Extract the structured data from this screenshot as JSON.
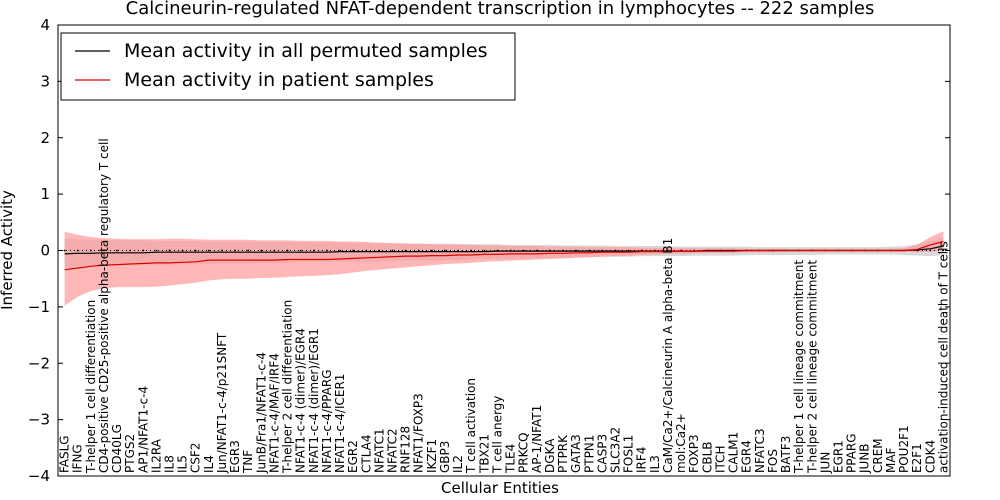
{
  "chart_data": {
    "type": "line",
    "title": "Calcineurin-regulated NFAT-dependent transcription in lymphocytes -- 222 samples",
    "xlabel": "Cellular Entities",
    "ylabel": "Inferred Activity",
    "ylim": [
      -4,
      4
    ],
    "yticks": [
      -4,
      -3,
      -2,
      -1,
      0,
      1,
      2,
      3,
      4
    ],
    "grid": false,
    "legend_position": "top-left",
    "categories": [
      "FASLG",
      "IFNG",
      "T-helper 1 cell differentiation",
      "CD4-positive CD25-positive alpha-beta regulatory T cell",
      "CD40LG",
      "PTGS2",
      "AP1/NFAT1-c-4",
      "IL2RA",
      "IL8",
      "IL5",
      "CSF2",
      "IL4",
      "Jun/NFAT1-c-4/p21SNFT",
      "EGR3",
      "TNF",
      "JunB/Fra1/NFAT1-c-4",
      "NFAT1-c-4/MAF/IRF4",
      "T-helper 2 cell differentiation",
      "NFAT1-c-4 (dimer)/EGR4",
      "NFAT1-c-4 (dimer)/EGR1",
      "NFAT1-c-4/PPARG",
      "NFAT1-c-4/ICER1",
      "EGR2",
      "CTLA4",
      "NFATC1",
      "NFATC2",
      "RNF128",
      "NFAT1/FOXP3",
      "IKZF1",
      "GBP3",
      "IL2",
      "T cell activation",
      "TBX21",
      "T cell anergy",
      "TLE4",
      "PRKCQ",
      "AP-1/NFAT1",
      "DGKA",
      "PTPRK",
      "GATA3",
      "PTPN1",
      "CASP3",
      "SLC3A2",
      "FOSL1",
      "IRF4",
      "IL3",
      "CaM/Ca2+/Calcineurin A alpha-beta B1",
      "mol:Ca2+",
      "FOXP3",
      "CBLB",
      "ITCH",
      "CALM1",
      "EGR4",
      "NFATC3",
      "FOS",
      "BATF3",
      "T-helper 1 cell lineage commitment",
      "T-helper 2 cell lineage commitment",
      "JUN",
      "EGR1",
      "PPARG",
      "JUNB",
      "CREM",
      "MAF",
      "POU2F1",
      "E2F1",
      "CDK4",
      "activation-induced cell death of T cells"
    ],
    "series": [
      {
        "name": "Mean activity in all permuted samples",
        "color": "#000000",
        "values": [
          -0.06,
          -0.05,
          -0.05,
          -0.04,
          -0.04,
          -0.04,
          -0.04,
          -0.03,
          -0.03,
          -0.03,
          -0.03,
          -0.03,
          -0.03,
          -0.03,
          -0.03,
          -0.03,
          -0.03,
          -0.03,
          -0.03,
          -0.03,
          -0.03,
          -0.02,
          -0.02,
          -0.02,
          -0.02,
          -0.02,
          -0.02,
          -0.02,
          -0.02,
          -0.02,
          -0.02,
          -0.02,
          -0.02,
          -0.01,
          -0.01,
          -0.01,
          -0.01,
          -0.01,
          -0.01,
          -0.01,
          -0.01,
          -0.01,
          -0.01,
          -0.01,
          -0.01,
          -0.01,
          -0.01,
          -0.01,
          -0.01,
          0.0,
          0.0,
          0.0,
          0.0,
          0.0,
          0.0,
          0.0,
          0.0,
          0.0,
          0.0,
          0.0,
          0.0,
          0.0,
          0.0,
          0.0,
          0.0,
          0.01,
          0.03,
          0.08
        ],
        "band": {
          "lower": [
            -0.3,
            -0.28,
            -0.27,
            -0.26,
            -0.26,
            -0.25,
            -0.25,
            -0.25,
            -0.25,
            -0.24,
            -0.24,
            -0.24,
            -0.23,
            -0.23,
            -0.23,
            -0.22,
            -0.22,
            -0.22,
            -0.21,
            -0.21,
            -0.21,
            -0.2,
            -0.2,
            -0.2,
            -0.19,
            -0.19,
            -0.18,
            -0.18,
            -0.18,
            -0.17,
            -0.17,
            -0.16,
            -0.16,
            -0.15,
            -0.15,
            -0.14,
            -0.14,
            -0.13,
            -0.13,
            -0.12,
            -0.12,
            -0.11,
            -0.11,
            -0.11,
            -0.1,
            -0.1,
            -0.1,
            -0.1,
            -0.09,
            -0.09,
            -0.09,
            -0.09,
            -0.08,
            -0.08,
            -0.08,
            -0.08,
            -0.08,
            -0.08,
            -0.07,
            -0.07,
            -0.07,
            -0.07,
            -0.07,
            -0.07,
            -0.08,
            -0.09,
            -0.1,
            -0.08
          ],
          "upper": [
            0.22,
            0.2,
            0.19,
            0.19,
            0.18,
            0.18,
            0.18,
            0.17,
            0.17,
            0.17,
            0.17,
            0.16,
            0.16,
            0.16,
            0.16,
            0.15,
            0.15,
            0.15,
            0.15,
            0.14,
            0.14,
            0.14,
            0.14,
            0.13,
            0.13,
            0.13,
            0.13,
            0.12,
            0.12,
            0.12,
            0.12,
            0.11,
            0.11,
            0.11,
            0.1,
            0.1,
            0.1,
            0.1,
            0.09,
            0.09,
            0.09,
            0.09,
            0.08,
            0.08,
            0.08,
            0.08,
            0.08,
            0.07,
            0.07,
            0.07,
            0.07,
            0.07,
            0.07,
            0.06,
            0.06,
            0.06,
            0.06,
            0.06,
            0.06,
            0.06,
            0.06,
            0.06,
            0.06,
            0.07,
            0.08,
            0.11,
            0.16,
            0.24
          ]
        }
      },
      {
        "name": "Mean activity in patient samples",
        "color": "#dd0000",
        "values": [
          -0.34,
          -0.31,
          -0.28,
          -0.26,
          -0.25,
          -0.24,
          -0.23,
          -0.22,
          -0.22,
          -0.21,
          -0.2,
          -0.17,
          -0.17,
          -0.17,
          -0.17,
          -0.17,
          -0.17,
          -0.16,
          -0.16,
          -0.16,
          -0.16,
          -0.15,
          -0.14,
          -0.13,
          -0.12,
          -0.11,
          -0.1,
          -0.1,
          -0.09,
          -0.09,
          -0.08,
          -0.08,
          -0.07,
          -0.07,
          -0.06,
          -0.06,
          -0.06,
          -0.05,
          -0.05,
          -0.04,
          -0.04,
          -0.03,
          -0.03,
          -0.03,
          -0.02,
          -0.02,
          -0.02,
          -0.01,
          -0.01,
          -0.01,
          -0.01,
          -0.01,
          0.0,
          0.0,
          0.0,
          0.0,
          0.0,
          0.0,
          0.0,
          0.0,
          0.0,
          0.0,
          0.0,
          0.0,
          0.0,
          0.02,
          0.1,
          0.16
        ],
        "band": {
          "lower": [
            -0.98,
            -0.82,
            -0.72,
            -0.67,
            -0.65,
            -0.65,
            -0.65,
            -0.64,
            -0.62,
            -0.6,
            -0.57,
            -0.53,
            -0.51,
            -0.5,
            -0.5,
            -0.49,
            -0.48,
            -0.47,
            -0.46,
            -0.45,
            -0.44,
            -0.42,
            -0.39,
            -0.36,
            -0.34,
            -0.32,
            -0.3,
            -0.28,
            -0.26,
            -0.24,
            -0.23,
            -0.22,
            -0.2,
            -0.19,
            -0.18,
            -0.17,
            -0.16,
            -0.15,
            -0.14,
            -0.13,
            -0.12,
            -0.11,
            -0.1,
            -0.09,
            -0.08,
            -0.07,
            -0.06,
            -0.06,
            -0.05,
            -0.04,
            -0.04,
            -0.04,
            -0.03,
            -0.03,
            -0.03,
            -0.02,
            -0.02,
            -0.02,
            -0.02,
            -0.02,
            -0.02,
            -0.02,
            -0.02,
            -0.02,
            -0.02,
            -0.03,
            -0.02,
            0.0
          ],
          "upper": [
            0.33,
            0.28,
            0.24,
            0.22,
            0.21,
            0.2,
            0.2,
            0.2,
            0.21,
            0.21,
            0.2,
            0.19,
            0.19,
            0.19,
            0.19,
            0.18,
            0.18,
            0.18,
            0.17,
            0.17,
            0.17,
            0.16,
            0.16,
            0.15,
            0.14,
            0.13,
            0.12,
            0.12,
            0.11,
            0.11,
            0.1,
            0.1,
            0.09,
            0.09,
            0.08,
            0.08,
            0.08,
            0.07,
            0.07,
            0.07,
            0.06,
            0.06,
            0.06,
            0.06,
            0.05,
            0.05,
            0.05,
            0.04,
            0.04,
            0.04,
            0.04,
            0.04,
            0.03,
            0.03,
            0.03,
            0.03,
            0.03,
            0.03,
            0.03,
            0.03,
            0.03,
            0.03,
            0.03,
            0.03,
            0.04,
            0.1,
            0.24,
            0.34
          ]
        }
      }
    ],
    "zero_line": 0,
    "colors": {
      "patient_band": "#ff9999",
      "permuted_band": "#cccccc"
    }
  }
}
